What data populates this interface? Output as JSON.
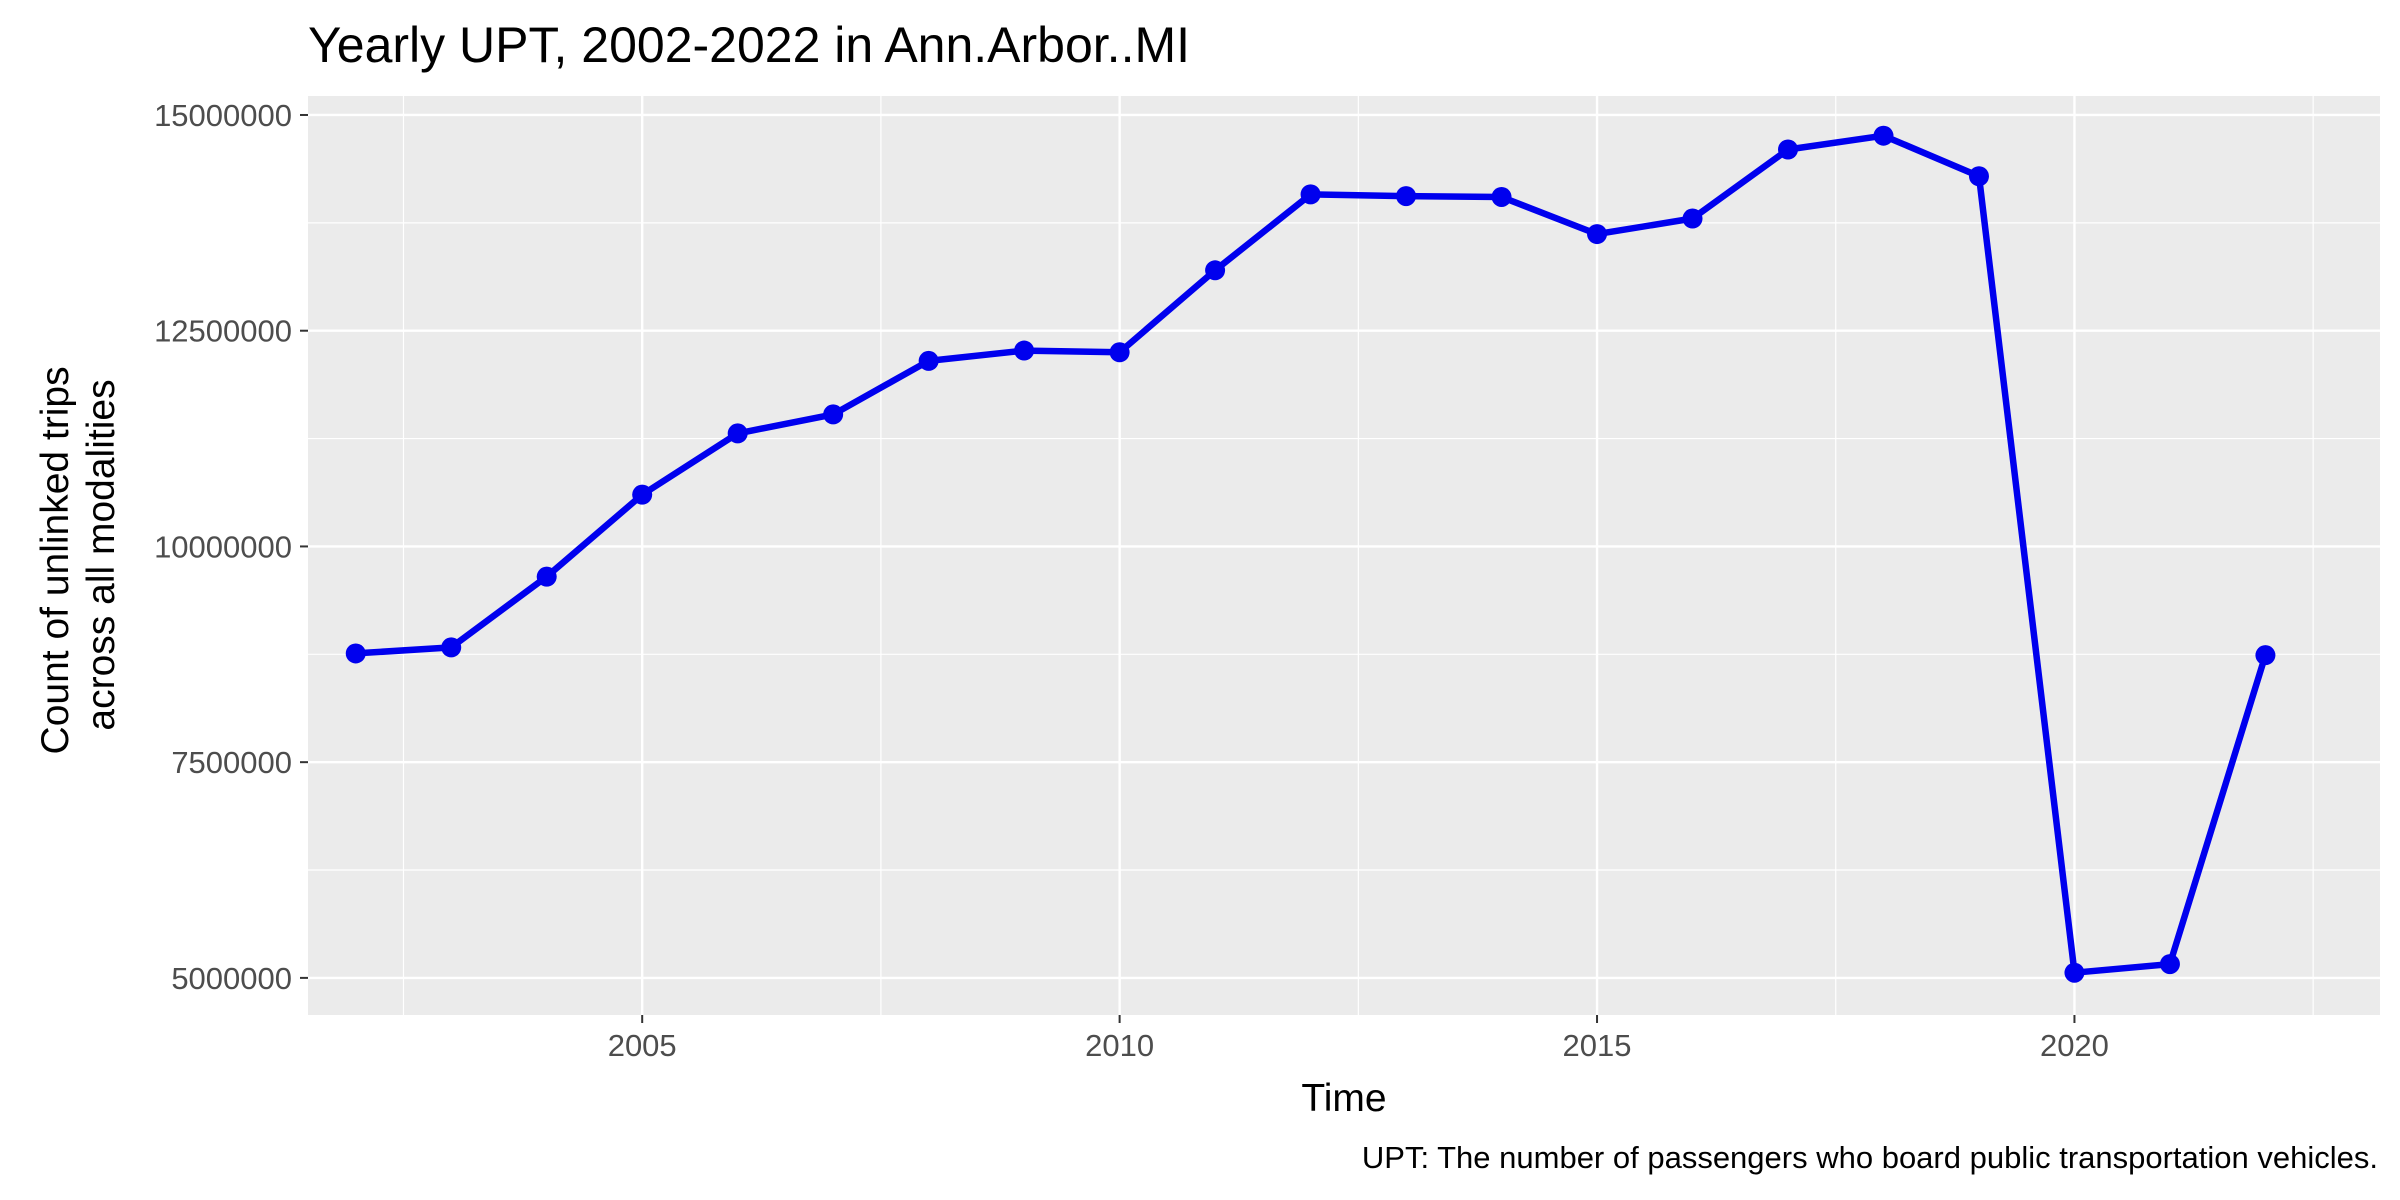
{
  "chart_data": {
    "type": "line",
    "title": "Yearly UPT, 2002-2022 in Ann.Arbor..MI",
    "xlabel": "Time",
    "ylabel_lines": [
      "Count of unlinked trips",
      "across all modalities"
    ],
    "caption": "UPT: The number of passengers who board public transportation vehicles.",
    "x": [
      2002,
      2003,
      2004,
      2005,
      2006,
      2007,
      2008,
      2009,
      2010,
      2011,
      2012,
      2013,
      2014,
      2015,
      2016,
      2017,
      2018,
      2019,
      2020,
      2021,
      2022
    ],
    "series": [
      {
        "values": [
          8760000,
          8830000,
          9650000,
          10600000,
          11310000,
          11530000,
          12150000,
          12270000,
          12250000,
          13200000,
          14080000,
          14060000,
          14050000,
          13620000,
          13800000,
          14600000,
          14760000,
          14290000,
          5060000,
          5160000,
          8740000
        ]
      }
    ],
    "xlim": [
      2001.5,
      2023.2
    ],
    "ylim": [
      4570000,
      15220000
    ],
    "xticks": [
      2005,
      2010,
      2015,
      2020
    ],
    "xtick_labels": [
      "2005",
      "2010",
      "2015",
      "2020"
    ],
    "yticks": [
      5000000,
      7500000,
      10000000,
      12500000,
      15000000
    ],
    "ytick_labels": [
      "5000000",
      "7500000",
      "10000000",
      "12500000",
      "15000000"
    ],
    "grid": true,
    "colors": {
      "line": "#0000ee",
      "panel": "#ebebeb",
      "grid": "#ffffff"
    }
  }
}
